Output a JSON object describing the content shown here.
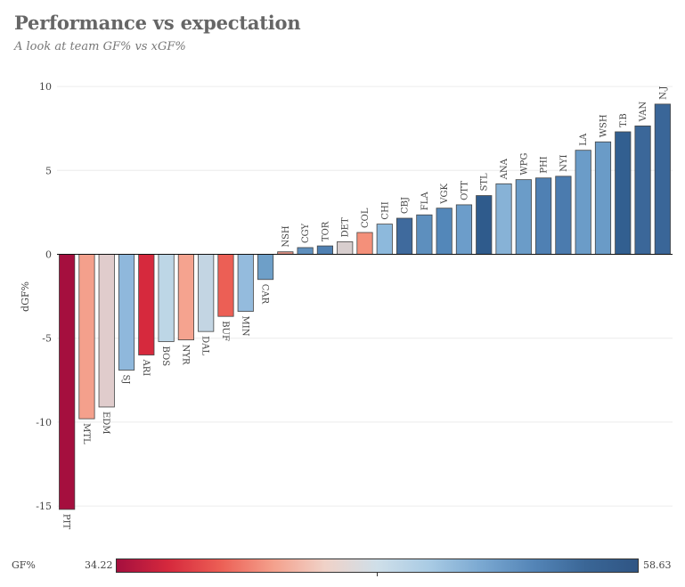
{
  "header": {
    "title": "Performance vs expectation",
    "subtitle": "A look at team GF% vs xGF%"
  },
  "chart_data": {
    "type": "bar",
    "ylabel": "dGF%",
    "ylim": [
      -16.5,
      10.5
    ],
    "yticks": [
      -15,
      -10,
      -5,
      0,
      5,
      10
    ],
    "grid": true,
    "categories": [
      "PIT",
      "MTL",
      "EDM",
      "SJ",
      "ARI",
      "BOS",
      "NYR",
      "DAL",
      "BUF",
      "MIN",
      "CAR",
      "NSH",
      "CGY",
      "TOR",
      "DET",
      "COL",
      "CHI",
      "CBJ",
      "FLA",
      "VGK",
      "OTT",
      "STL",
      "ANA",
      "WPG",
      "PHI",
      "NYI",
      "LA",
      "WSH",
      "T.B",
      "VAN",
      "N.J"
    ],
    "values": [
      -15.2,
      -9.8,
      -9.1,
      -6.9,
      -6.0,
      -5.2,
      -5.1,
      -4.6,
      -3.7,
      -3.4,
      -1.5,
      0.15,
      0.4,
      0.5,
      0.75,
      1.3,
      1.8,
      2.15,
      2.35,
      2.75,
      2.95,
      3.5,
      4.2,
      4.45,
      4.55,
      4.65,
      6.2,
      6.7,
      7.3,
      7.65,
      8.95
    ],
    "colors": [
      "#a50f3e",
      "#f4a08c",
      "#e0cccc",
      "#8fb8dc",
      "#d6293d",
      "#bdd6e6",
      "#f5a38f",
      "#c3d5e3",
      "#ec5f55",
      "#94bbdd",
      "#6e9fc8",
      "#d68d80",
      "#5f8fbd",
      "#4f80b2",
      "#d8cece",
      "#f4907a",
      "#8db9dc",
      "#3f6a9d",
      "#5d8fbe",
      "#5387b9",
      "#6c9dca",
      "#2f5b8c",
      "#87b2d6",
      "#6b9cc8",
      "#4f80b3",
      "#4b7bae",
      "#6b9cc8",
      "#6a9bc7",
      "#325f90",
      "#3b6799",
      "#3a6698"
    ],
    "legend": {
      "title": "GF%",
      "min": "34.22",
      "max": "58.63",
      "colors": [
        "#a50f3e",
        "#d6293d",
        "#ec5f55",
        "#f4a08c",
        "#f0d2c8",
        "#cfdfe9",
        "#a9cbe4",
        "#7aa8d1",
        "#5485b7",
        "#3a6696",
        "#2f5584"
      ]
    }
  }
}
